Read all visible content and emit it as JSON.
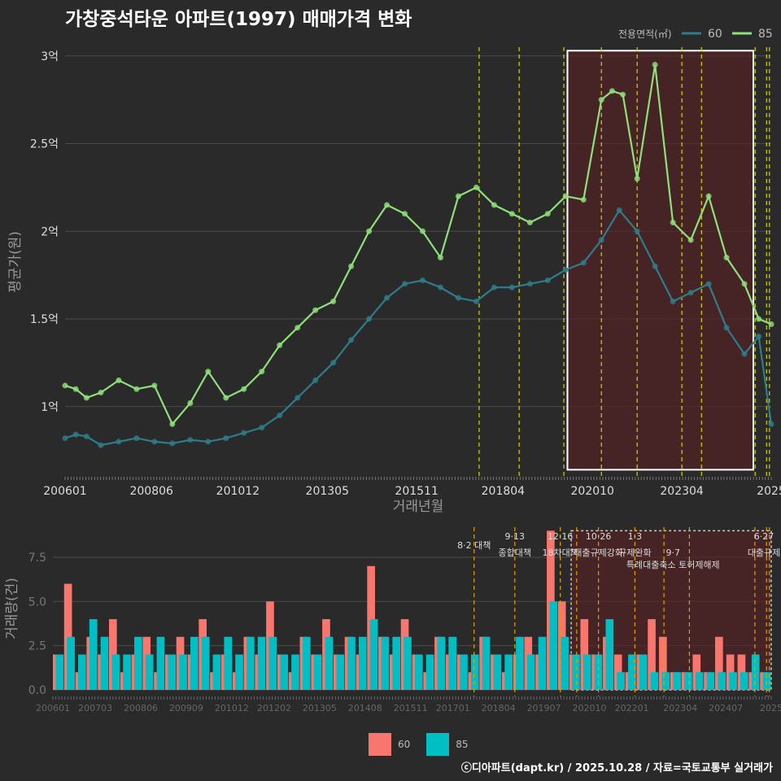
{
  "title": "가창중석타운 아파트(1997) 매매가격 변화",
  "footer": "ⓒ디아파트(dapt.kr) / 2025.10.28 / 자료=국토교통부 실거래가",
  "colors": {
    "bg": "#2a2a2b",
    "grid": "#4a4a4a",
    "s60": "#2e7d8a",
    "s85": "#8fe07a",
    "bar60": "#f8766d",
    "bar85": "#00bfc4",
    "policy": "#d4d400",
    "policy2": "#e0a000",
    "highlight": "#5a2020"
  },
  "legend_top": {
    "title": "전용면적(㎡)",
    "items": [
      "60",
      "85"
    ]
  },
  "legend_bottom": {
    "items": [
      "60",
      "85"
    ]
  },
  "chart_data": [
    {
      "type": "line",
      "title": "가창중석타운 아파트(1997) 매매가격 변화",
      "xlabel": "거래년월",
      "ylabel": "평균가(원)",
      "ylim": [
        0.6,
        3.05
      ],
      "yticks": [
        1.0,
        1.5,
        2.0,
        2.5,
        3.0
      ],
      "ytick_labels": [
        "1억",
        "1.5억",
        "2억",
        "2.5억",
        "3억"
      ],
      "xlim": [
        2006.0,
        2025.75
      ],
      "xticks": [
        2006.0,
        2008.417,
        2010.833,
        2013.333,
        2015.833,
        2018.25,
        2020.75,
        2023.25,
        2025.75
      ],
      "xtick_labels": [
        "200601",
        "200806",
        "201012",
        "201305",
        "201511",
        "201804",
        "202010",
        "202304",
        "2025"
      ],
      "policy_lines": [
        2017.58,
        2018.7,
        2019.95,
        2021.0,
        2022.0,
        2023.25,
        2023.8,
        2025.3,
        2025.62,
        2025.7
      ],
      "highlight": {
        "x": [
          2020.05,
          2025.25
        ],
        "y": [
          0.64,
          3.03
        ]
      },
      "series": [
        {
          "name": "60",
          "x": [
            2006.0,
            2006.3,
            2006.6,
            2007.0,
            2007.5,
            2008.0,
            2008.5,
            2009.0,
            2009.5,
            2010.0,
            2010.5,
            2011.0,
            2011.5,
            2012.0,
            2012.5,
            2013.0,
            2013.5,
            2014.0,
            2014.5,
            2015.0,
            2015.5,
            2016.0,
            2016.5,
            2017.0,
            2017.5,
            2018.0,
            2018.5,
            2019.0,
            2019.5,
            2020.0,
            2020.5,
            2021.0,
            2021.5,
            2022.0,
            2022.5,
            2023.0,
            2023.5,
            2024.0,
            2024.5,
            2025.0,
            2025.4,
            2025.75
          ],
          "values": [
            0.82,
            0.84,
            0.83,
            0.78,
            0.8,
            0.82,
            0.8,
            0.79,
            0.81,
            0.8,
            0.82,
            0.85,
            0.88,
            0.95,
            1.05,
            1.15,
            1.25,
            1.38,
            1.5,
            1.62,
            1.7,
            1.72,
            1.68,
            1.62,
            1.6,
            1.68,
            1.68,
            1.7,
            1.72,
            1.78,
            1.82,
            1.95,
            2.12,
            2.0,
            1.8,
            1.6,
            1.65,
            1.7,
            1.45,
            1.3,
            1.4,
            0.9
          ]
        },
        {
          "name": "85",
          "x": [
            2006.0,
            2006.3,
            2006.6,
            2007.0,
            2007.5,
            2008.0,
            2008.5,
            2009.0,
            2009.5,
            2010.0,
            2010.5,
            2011.0,
            2011.5,
            2012.0,
            2012.5,
            2013.0,
            2013.5,
            2014.0,
            2014.5,
            2015.0,
            2015.5,
            2016.0,
            2016.5,
            2017.0,
            2017.5,
            2018.0,
            2018.5,
            2019.0,
            2019.5,
            2020.0,
            2020.5,
            2021.0,
            2021.3,
            2021.6,
            2022.0,
            2022.5,
            2023.0,
            2023.5,
            2024.0,
            2024.5,
            2025.0,
            2025.4,
            2025.75
          ],
          "values": [
            1.12,
            1.1,
            1.05,
            1.08,
            1.15,
            1.1,
            1.12,
            0.9,
            1.02,
            1.2,
            1.05,
            1.1,
            1.2,
            1.35,
            1.45,
            1.55,
            1.6,
            1.8,
            2.0,
            2.15,
            2.1,
            2.0,
            1.85,
            2.2,
            2.25,
            2.15,
            2.1,
            2.05,
            2.1,
            2.2,
            2.18,
            2.75,
            2.8,
            2.78,
            2.3,
            2.95,
            2.05,
            1.95,
            2.2,
            1.85,
            1.7,
            1.5,
            1.47
          ]
        }
      ]
    },
    {
      "type": "bar",
      "xlabel": "",
      "ylabel": "거래량(건)",
      "ylim": [
        0,
        9.2
      ],
      "yticks": [
        0.0,
        2.5,
        5.0,
        7.5
      ],
      "ytick_labels": [
        "0.0",
        "2.5",
        "5.0",
        "7.5"
      ],
      "xlim": [
        2006.0,
        2025.75
      ],
      "xticks": [
        2006.0,
        2007.167,
        2008.417,
        2009.667,
        2010.917,
        2012.083,
        2013.333,
        2014.583,
        2015.833,
        2017.0,
        2018.25,
        2019.5,
        2020.75,
        2021.917,
        2023.25,
        2024.5,
        2025.75
      ],
      "xtick_labels": [
        "200601",
        "200703",
        "200806",
        "200909",
        "201012",
        "201202",
        "201305",
        "201408",
        "201511",
        "201701",
        "201804",
        "201907",
        "202010",
        "202201",
        "202304",
        "202407",
        "2025"
      ],
      "policy_lines": [
        2017.58,
        2018.7,
        2019.95,
        2020.4,
        2021.0,
        2022.0,
        2022.8,
        2023.5,
        2025.3,
        2025.62,
        2025.7
      ],
      "highlight": {
        "x": [
          2020.25,
          2025.75
        ],
        "y": [
          0,
          9.0
        ]
      },
      "annotations": [
        {
          "x": 2017.58,
          "y": 8.0,
          "text": "8·2 대책"
        },
        {
          "x": 2018.7,
          "y": 8.5,
          "text": "9·13"
        },
        {
          "x": 2018.7,
          "y": 7.6,
          "text": "종합대책"
        },
        {
          "x": 2019.95,
          "y": 8.5,
          "text": "12·16"
        },
        {
          "x": 2019.95,
          "y": 7.6,
          "text": "18차대책"
        },
        {
          "x": 2021.0,
          "y": 8.5,
          "text": "10·26"
        },
        {
          "x": 2021.0,
          "y": 7.6,
          "text": "대출규제강화"
        },
        {
          "x": 2022.0,
          "y": 8.5,
          "text": "1·3"
        },
        {
          "x": 2022.0,
          "y": 7.6,
          "text": "규제완화"
        },
        {
          "x": 2023.05,
          "y": 7.6,
          "text": "9·7"
        },
        {
          "x": 2023.05,
          "y": 6.9,
          "text": "특례대출축소 토허제해제"
        },
        {
          "x": 2025.55,
          "y": 8.5,
          "text": "6·27"
        },
        {
          "x": 2025.55,
          "y": 7.6,
          "text": "대출규제"
        }
      ],
      "series": [
        {
          "name": "60",
          "values": [
            2,
            6,
            1,
            3,
            2,
            4,
            1,
            2,
            3,
            1,
            2,
            3,
            2,
            4,
            1,
            2,
            1,
            3,
            2,
            5,
            2,
            1,
            3,
            2,
            4,
            2,
            3,
            2,
            7,
            3,
            2,
            4,
            2,
            1,
            3,
            2,
            2,
            1,
            3,
            2,
            1,
            2,
            3,
            2,
            9,
            5,
            2,
            4,
            2,
            3,
            2,
            1,
            2,
            4,
            3,
            1,
            1,
            2,
            1,
            3,
            2,
            2,
            1,
            1
          ]
        },
        {
          "name": "85",
          "values": [
            2,
            3,
            2,
            4,
            3,
            2,
            2,
            3,
            2,
            3,
            2,
            2,
            3,
            3,
            2,
            3,
            2,
            3,
            3,
            3,
            2,
            2,
            3,
            2,
            3,
            2,
            3,
            3,
            4,
            3,
            3,
            3,
            2,
            2,
            3,
            3,
            2,
            2,
            3,
            2,
            2,
            3,
            2,
            3,
            5,
            3,
            2,
            2,
            2,
            4,
            1,
            2,
            2,
            1,
            1,
            1,
            1,
            1,
            1,
            1,
            1,
            1,
            2,
            1
          ]
        }
      ]
    }
  ]
}
